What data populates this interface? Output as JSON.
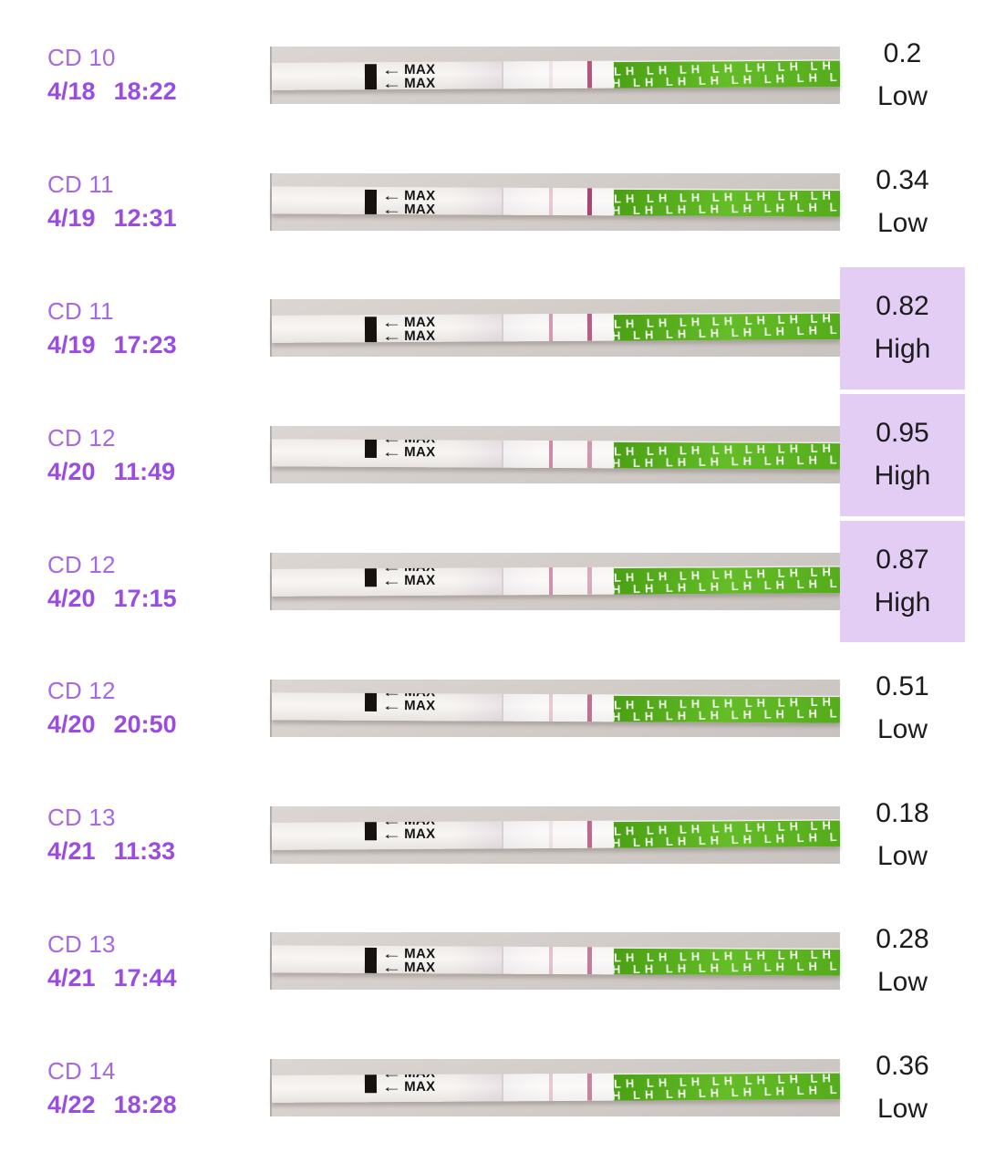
{
  "colors": {
    "cycle_day": "#a768e2",
    "datetime": "#9a4ce2",
    "value_text": "#1c1c1c",
    "high_highlight": "#e3cdf5",
    "strip_green": "#64bc27",
    "test_line": "#a33a6a"
  },
  "strip_labels": {
    "max": "MAX",
    "lh_row": "LH LH LH LH LH LH LH LH LH LH LH LH LH LH"
  },
  "rows": [
    {
      "cycle_day": "CD 10",
      "date": "4/18",
      "time": "18:22",
      "value": "0.2",
      "level": "Low",
      "highlight": "false",
      "strip": {
        "max_shift": "1px",
        "line_left_opacity": 0.12,
        "line_right_opacity": 0.85
      }
    },
    {
      "cycle_day": "CD 11",
      "date": "4/19",
      "time": "12:31",
      "value": "0.34",
      "level": "Low",
      "highlight": "false",
      "strip": {
        "max_shift": "2px",
        "line_left_opacity": 0.3,
        "line_right_opacity": 0.95
      }
    },
    {
      "cycle_day": "CD 11",
      "date": "4/19",
      "time": "17:23",
      "value": "0.82",
      "level": "High",
      "highlight": "true",
      "strip": {
        "max_shift": "1px",
        "line_left_opacity": 0.6,
        "line_right_opacity": 0.8
      }
    },
    {
      "cycle_day": "CD 12",
      "date": "4/20",
      "time": "11:49",
      "value": "0.95",
      "level": "High",
      "highlight": "true",
      "strip": {
        "max_shift": "-9px",
        "line_left_opacity": 0.7,
        "line_right_opacity": 0.5
      }
    },
    {
      "cycle_day": "CD 12",
      "date": "4/20",
      "time": "17:15",
      "value": "0.87",
      "level": "High",
      "highlight": "true",
      "strip": {
        "max_shift": "-9px",
        "line_left_opacity": 0.65,
        "line_right_opacity": 0.4
      }
    },
    {
      "cycle_day": "CD 12",
      "date": "4/20",
      "time": "20:50",
      "value": "0.51",
      "level": "Low",
      "highlight": "false",
      "strip": {
        "max_shift": "-9px",
        "line_left_opacity": 0.3,
        "line_right_opacity": 0.7
      }
    },
    {
      "cycle_day": "CD 13",
      "date": "4/21",
      "time": "11:33",
      "value": "0.18",
      "level": "Low",
      "highlight": "false",
      "strip": {
        "max_shift": "-9px",
        "line_left_opacity": 0.12,
        "line_right_opacity": 0.75
      }
    },
    {
      "cycle_day": "CD 13",
      "date": "4/21",
      "time": "17:44",
      "value": "0.28",
      "level": "Low",
      "highlight": "false",
      "strip": {
        "max_shift": "1px",
        "line_left_opacity": 0.35,
        "line_right_opacity": 0.65
      }
    },
    {
      "cycle_day": "CD 14",
      "date": "4/22",
      "time": "18:28",
      "value": "0.36",
      "level": "Low",
      "highlight": "false",
      "strip": {
        "max_shift": "-9px",
        "line_left_opacity": 0.3,
        "line_right_opacity": 0.6
      }
    }
  ]
}
